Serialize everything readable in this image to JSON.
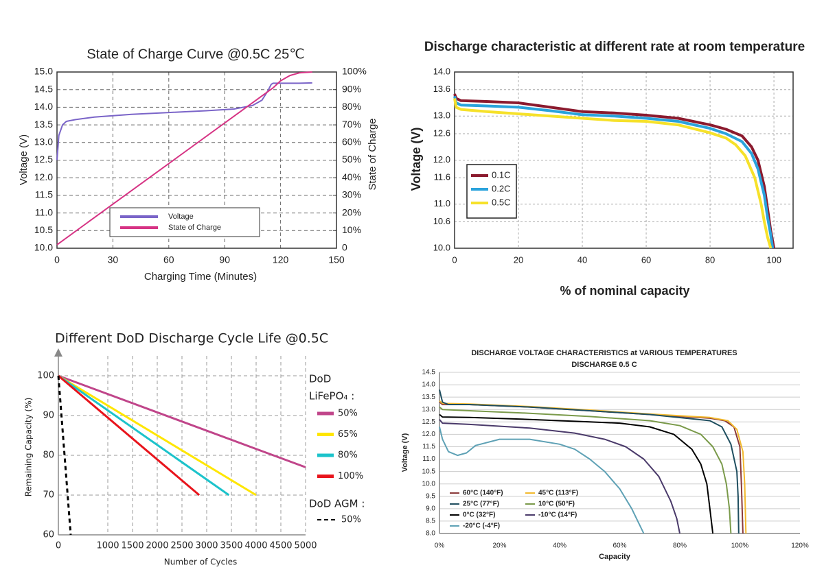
{
  "chart_data": [
    {
      "type": "line",
      "title": "State of Charge Curve @0.5C 25℃",
      "x_label": "Charging Time (Minutes)",
      "y_label": "Voltage (V)",
      "y2_label": "State of Charge",
      "xlim": [
        0,
        150
      ],
      "xticks": [
        0,
        30,
        60,
        90,
        120,
        150
      ],
      "ylim": [
        10,
        15
      ],
      "yticks": [
        {
          "value": 10,
          "label": "10.0"
        },
        10.5,
        {
          "value": 11,
          "label": "11.0"
        },
        11.5,
        {
          "value": 12,
          "label": "12.0"
        },
        12.5,
        {
          "value": 13,
          "label": "13.0"
        },
        13.5,
        {
          "value": 14,
          "label": "14.0"
        },
        14.5,
        {
          "value": 15,
          "label": "15.0"
        }
      ],
      "y2lim": [
        0,
        100
      ],
      "y2ticks": [
        0,
        {
          "value": 10,
          "label": "10%"
        },
        {
          "value": 20,
          "label": "20%"
        },
        {
          "value": 30,
          "label": "30%"
        },
        {
          "value": 40,
          "label": "40%"
        },
        {
          "value": 50,
          "label": "50%"
        },
        {
          "value": 60,
          "label": "60%"
        },
        {
          "value": 70,
          "label": "70%"
        },
        {
          "value": 80,
          "label": "80%"
        },
        {
          "value": 90,
          "label": "90%"
        },
        {
          "value": 100,
          "label": "100%"
        }
      ],
      "grid": true,
      "series": [
        {
          "name": "Voltage",
          "color": "#7a64c8",
          "x": [
            0,
            1,
            3,
            5,
            10,
            20,
            40,
            60,
            80,
            95,
            105,
            110,
            113,
            115,
            116,
            120,
            130,
            137
          ],
          "values": [
            12.5,
            13.2,
            13.5,
            13.6,
            13.65,
            13.72,
            13.8,
            13.85,
            13.9,
            13.95,
            14.05,
            14.2,
            14.45,
            14.65,
            14.68,
            14.68,
            14.68,
            14.69
          ]
        },
        {
          "name": "State of Charge",
          "color": "#d63384",
          "axis": "y2",
          "x": [
            0,
            116,
            120,
            125,
            130,
            137
          ],
          "values": [
            2,
            91,
            95,
            98,
            99.5,
            100
          ]
        }
      ]
    },
    {
      "type": "line",
      "title": "Discharge characteristic at different rate at room temperature",
      "x_label": "% of nominal capacity",
      "y_label": "Voltage (V)",
      "xlim": [
        0,
        106
      ],
      "xticks": [
        0,
        20,
        40,
        60,
        80,
        100
      ],
      "ylim": [
        10,
        14
      ],
      "yticks": [
        {
          "value": 10,
          "label": "10.0"
        },
        10.6,
        {
          "value": 11,
          "label": "11.0"
        },
        11.6,
        {
          "value": 12,
          "label": "12.0"
        },
        12.6,
        {
          "value": 13,
          "label": "13.0"
        },
        13.6,
        {
          "value": 14,
          "label": "14.0"
        }
      ],
      "grid": true,
      "legend": "left",
      "series": [
        {
          "name": "0.1C",
          "color": "#8b1a2e",
          "x": [
            0,
            0.5,
            2,
            10,
            20,
            30,
            40,
            50,
            60,
            70,
            80,
            85,
            90,
            93,
            95,
            97,
            98,
            99,
            100
          ],
          "values": [
            13.5,
            13.4,
            13.35,
            13.33,
            13.3,
            13.2,
            13.1,
            13.07,
            13.02,
            12.95,
            12.8,
            12.7,
            12.55,
            12.3,
            12.0,
            11.4,
            10.9,
            10.4,
            10.0
          ]
        },
        {
          "name": "0.2C",
          "color": "#2aa3dc",
          "x": [
            0,
            0.5,
            2,
            10,
            20,
            30,
            40,
            50,
            60,
            70,
            80,
            85,
            90,
            93,
            95,
            97,
            98,
            99,
            99.6
          ],
          "values": [
            13.45,
            13.3,
            13.25,
            13.23,
            13.2,
            13.12,
            13.03,
            13.0,
            12.95,
            12.88,
            12.72,
            12.6,
            12.42,
            12.15,
            11.8,
            11.2,
            10.7,
            10.3,
            10.0
          ]
        },
        {
          "name": "0.5C",
          "color": "#f6e12a",
          "x": [
            0,
            0.5,
            2,
            10,
            20,
            30,
            40,
            50,
            60,
            70,
            80,
            85,
            88,
            91,
            94,
            96,
            97,
            98,
            99
          ],
          "values": [
            13.4,
            13.2,
            13.15,
            13.1,
            13.05,
            13.0,
            12.95,
            12.9,
            12.88,
            12.8,
            12.62,
            12.5,
            12.35,
            12.1,
            11.6,
            11.0,
            10.6,
            10.25,
            10.0
          ]
        }
      ]
    },
    {
      "type": "line",
      "title": "Different DoD Discharge Cycle Life @0.5C",
      "x_label": "Number of Cycles",
      "y_label": "Remaining Capacity (%)",
      "xlim": [
        0,
        5000
      ],
      "xticks": [
        0,
        1000,
        1500,
        2000,
        2500,
        3000,
        3500,
        4000,
        4500,
        5000
      ],
      "ylim": [
        60,
        105
      ],
      "yticks": [
        60,
        70,
        80,
        90,
        100
      ],
      "grid": true,
      "series_groups": [
        {
          "title": [
            "DoD",
            "LiFePO₄ :"
          ],
          "series": [
            {
              "name": "50%",
              "color": "#c0458a",
              "x": [
                0,
                5000
              ],
              "values": [
                100,
                77
              ]
            },
            {
              "name": "65%",
              "color": "#ffe600",
              "x": [
                0,
                4000
              ],
              "values": [
                100,
                70
              ]
            },
            {
              "name": "80%",
              "color": "#1cc3cb",
              "x": [
                0,
                3450
              ],
              "values": [
                100,
                70
              ]
            },
            {
              "name": "100%",
              "color": "#e8141c",
              "x": [
                0,
                2850
              ],
              "values": [
                100,
                70
              ]
            }
          ]
        },
        {
          "title": [
            "DoD AGM :"
          ],
          "series": [
            {
              "name": "50%",
              "color": "#000000",
              "dashed": true,
              "x": [
                0,
                250
              ],
              "values": [
                100,
                60
              ]
            }
          ]
        }
      ]
    },
    {
      "type": "line",
      "title": "DISCHARGE VOLTAGE CHARACTERISTICS at VARIOUS TEMPERATURES",
      "subtitle": "DISCHARGE 0.5 C",
      "x_label": "Capacity",
      "y_label": "Voltage (V)",
      "xlim": [
        0,
        120
      ],
      "xticks": [
        {
          "value": 0,
          "label": "0%"
        },
        {
          "value": 20,
          "label": "20%"
        },
        {
          "value": 40,
          "label": "40%"
        },
        {
          "value": 60,
          "label": "60%"
        },
        {
          "value": 80,
          "label": "80%"
        },
        {
          "value": 100,
          "label": "100%"
        },
        {
          "value": 120,
          "label": "120%"
        }
      ],
      "ylim": [
        8,
        14.5
      ],
      "yticks": [
        {
          "value": 8,
          "label": "8.0"
        },
        8.5,
        {
          "value": 9,
          "label": "9.0"
        },
        9.5,
        {
          "value": 10,
          "label": "10.0"
        },
        10.5,
        {
          "value": 11,
          "label": "11.0"
        },
        11.5,
        {
          "value": 12,
          "label": "12.0"
        },
        12.5,
        {
          "value": 13,
          "label": "13.0"
        },
        13.5,
        {
          "value": 14,
          "label": "14.0"
        },
        14.5
      ],
      "grid": "y",
      "series": [
        {
          "name": "60°C (140°F)",
          "color": "#8b3a3a",
          "x": [
            0,
            1,
            10,
            30,
            50,
            70,
            90,
            95,
            98,
            100,
            100.5,
            101
          ],
          "values": [
            13.3,
            13.2,
            13.2,
            13.1,
            12.95,
            12.8,
            12.65,
            12.55,
            12.3,
            11.5,
            10,
            8
          ]
        },
        {
          "name": "45°C (113°F)",
          "color": "#f2b92e",
          "x": [
            0,
            1,
            10,
            30,
            50,
            70,
            90,
            96,
            99,
            101,
            101.6,
            102
          ],
          "values": [
            13.35,
            13.25,
            13.22,
            13.12,
            12.98,
            12.82,
            12.68,
            12.55,
            12.2,
            11.3,
            10,
            8
          ]
        },
        {
          "name": "25°C (77°F)",
          "color": "#1f4e5f",
          "x": [
            0,
            1,
            3,
            10,
            30,
            50,
            70,
            90,
            94,
            97,
            99,
            99.4,
            99.6
          ],
          "values": [
            13.8,
            13.3,
            13.2,
            13.2,
            13.1,
            12.95,
            12.8,
            12.55,
            12.3,
            11.6,
            10.5,
            9.5,
            8
          ]
        },
        {
          "name": "10°C (50°F)",
          "color": "#7a9a4a",
          "x": [
            0,
            1,
            10,
            30,
            50,
            70,
            80,
            87,
            91,
            94,
            95.5,
            96.5,
            97
          ],
          "values": [
            13.1,
            13.0,
            12.95,
            12.85,
            12.72,
            12.55,
            12.35,
            12.0,
            11.5,
            10.8,
            10,
            9,
            8
          ]
        },
        {
          "name": "0°C (32°F)",
          "color": "#000000",
          "x": [
            0,
            1,
            10,
            30,
            50,
            60,
            70,
            78,
            84,
            87,
            89,
            90,
            91
          ],
          "values": [
            12.8,
            12.7,
            12.68,
            12.6,
            12.5,
            12.45,
            12.3,
            12.0,
            11.4,
            10.8,
            10,
            9,
            8
          ]
        },
        {
          "name": "-10°C (14°F)",
          "color": "#4a3a6a",
          "x": [
            0,
            1,
            10,
            30,
            45,
            55,
            62,
            68,
            73,
            77,
            79,
            80
          ],
          "values": [
            12.6,
            12.45,
            12.4,
            12.25,
            12.05,
            11.8,
            11.5,
            11.0,
            10.3,
            9.3,
            8.6,
            8
          ]
        },
        {
          "name": "-20°C (-4°F)",
          "color": "#5ea1b5",
          "x": [
            0,
            1,
            3,
            6,
            9,
            12,
            20,
            30,
            40,
            45,
            50,
            55,
            60,
            64,
            68
          ],
          "values": [
            12.3,
            11.8,
            11.3,
            11.15,
            11.25,
            11.55,
            11.8,
            11.8,
            11.6,
            11.4,
            11.0,
            10.5,
            9.8,
            9.0,
            8.0
          ]
        }
      ]
    }
  ]
}
